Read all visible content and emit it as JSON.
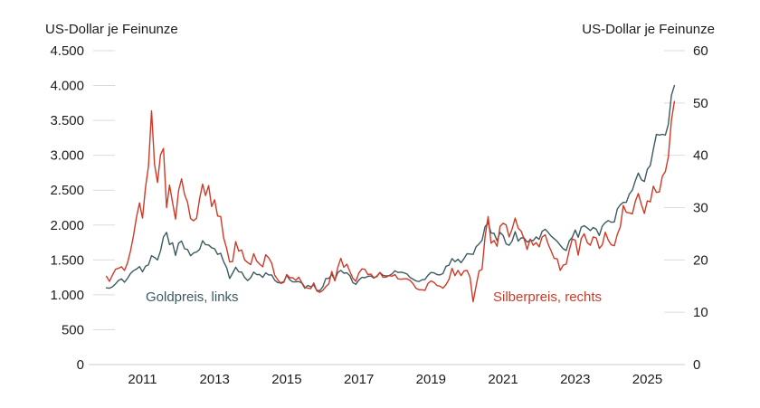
{
  "page": {
    "background": "#ffffff"
  },
  "chart": {
    "left_axis_title": "US-Dollar je Feinunze",
    "right_axis_title": "US-Dollar je Feinunze",
    "legend": {
      "gold_label": "Goldpreis, links",
      "silver_label": "Silberpreis, rechts"
    },
    "series_colors": {
      "gold": "#3c5a61",
      "silver": "#cf3a27"
    },
    "axis_colors": {
      "tick": "#dbdbdb",
      "baseline": "#cccccc",
      "text": "#1c1c1c"
    }
  },
  "chart_data": {
    "type": "line",
    "title": "",
    "xlabel": "",
    "ylabel_left": "US-Dollar je Feinunze",
    "ylabel_right": "US-Dollar je Feinunze",
    "x_start": 2010.0,
    "x_step": 0.0833333,
    "x_ticks": {
      "values": [
        2011,
        2013,
        2015,
        2017,
        2019,
        2021,
        2023,
        2025
      ],
      "labels": [
        "2011",
        "2013",
        "2015",
        "2017",
        "2019",
        "2021",
        "2023",
        "2025"
      ]
    },
    "left_axis": {
      "ylim": [
        0,
        4500
      ],
      "tick_values": [
        0,
        500,
        1000,
        1500,
        2000,
        2500,
        3000,
        3500,
        4000,
        4500
      ],
      "tick_labels": [
        "0",
        "500",
        "1.000",
        "1.500",
        "2.000",
        "2.500",
        "3.000",
        "3.500",
        "4.000",
        "4.500"
      ]
    },
    "right_axis": {
      "ylim": [
        0,
        60
      ],
      "tick_values": [
        0,
        10,
        20,
        30,
        40,
        50,
        60
      ],
      "tick_labels": [
        "0",
        "10",
        "20",
        "30",
        "40",
        "50",
        "60"
      ]
    },
    "grid": false,
    "legend_position": "inside-plot",
    "series": [
      {
        "name": "Goldpreis, links",
        "axis": "left",
        "color": "#3c5a61",
        "values": [
          1100,
          1095,
          1115,
          1155,
          1205,
          1230,
          1180,
          1235,
          1305,
          1345,
          1370,
          1405,
          1330,
          1410,
          1430,
          1560,
          1535,
          1500,
          1630,
          1830,
          1895,
          1720,
          1745,
          1565,
          1740,
          1770,
          1660,
          1650,
          1560,
          1600,
          1615,
          1650,
          1775,
          1720,
          1715,
          1675,
          1660,
          1580,
          1595,
          1475,
          1390,
          1235,
          1310,
          1395,
          1330,
          1325,
          1250,
          1205,
          1245,
          1325,
          1290,
          1290,
          1250,
          1315,
          1285,
          1285,
          1210,
          1175,
          1175,
          1185,
          1280,
          1215,
          1185,
          1185,
          1190,
          1170,
          1095,
          1135,
          1115,
          1140,
          1065,
          1060,
          1115,
          1235,
          1235,
          1290,
          1215,
          1320,
          1350,
          1310,
          1315,
          1275,
          1175,
          1150,
          1210,
          1250,
          1245,
          1265,
          1270,
          1240,
          1270,
          1320,
          1280,
          1270,
          1275,
          1300,
          1345,
          1320,
          1325,
          1315,
          1300,
          1250,
          1225,
          1200,
          1190,
          1215,
          1220,
          1280,
          1320,
          1315,
          1290,
          1285,
          1305,
          1410,
          1425,
          1520,
          1475,
          1510,
          1460,
          1520,
          1590,
          1585,
          1580,
          1690,
          1730,
          1780,
          1975,
          2035,
          1885,
          1880,
          1775,
          1895,
          1850,
          1730,
          1710,
          1770,
          1905,
          1770,
          1815,
          1815,
          1755,
          1785,
          1775,
          1830,
          1795,
          1910,
          1940,
          1895,
          1840,
          1805,
          1765,
          1710,
          1660,
          1635,
          1770,
          1825,
          1930,
          1825,
          1970,
          1990,
          1960,
          1920,
          1965,
          1940,
          1850,
          1985,
          2035,
          2065,
          2040,
          2045,
          2230,
          2290,
          2325,
          2325,
          2445,
          2500,
          2635,
          2745,
          2650,
          2625,
          2800,
          2855,
          3085,
          3300,
          3290,
          3300,
          3290,
          3445,
          3860,
          4000
        ]
      },
      {
        "name": "Silberpreis, rechts",
        "axis": "right",
        "color": "#cf3a27",
        "values": [
          16.9,
          15.9,
          17.1,
          18.2,
          18.4,
          18.7,
          18.0,
          19.4,
          21.7,
          24.6,
          28.2,
          30.9,
          28.0,
          33.8,
          37.9,
          48.5,
          38.3,
          34.8,
          40.1,
          41.3,
          30.0,
          34.3,
          31.0,
          27.8,
          33.3,
          35.5,
          32.5,
          31.0,
          27.9,
          27.5,
          28.0,
          31.7,
          34.5,
          32.3,
          34.2,
          30.2,
          31.5,
          28.4,
          28.3,
          24.2,
          22.2,
          19.6,
          19.7,
          23.5,
          21.7,
          21.9,
          20.0,
          19.5,
          19.1,
          21.2,
          19.8,
          19.2,
          18.7,
          21.0,
          20.4,
          19.4,
          17.1,
          16.2,
          15.5,
          15.7,
          17.2,
          16.6,
          16.6,
          16.1,
          16.7,
          15.7,
          14.8,
          14.6,
          14.5,
          15.6,
          14.1,
          13.8,
          14.2,
          14.9,
          15.4,
          17.8,
          16.0,
          18.6,
          20.3,
          18.6,
          19.2,
          17.8,
          16.5,
          15.9,
          17.5,
          18.3,
          18.2,
          17.2,
          17.3,
          16.6,
          16.8,
          17.6,
          16.7,
          16.7,
          17.0,
          16.9,
          17.2,
          16.4,
          16.3,
          16.4,
          16.4,
          16.1,
          15.5,
          14.6,
          14.3,
          14.3,
          14.2,
          15.5,
          16.0,
          15.7,
          15.1,
          15.0,
          14.6,
          15.3,
          16.3,
          18.4,
          17.0,
          18.0,
          17.0,
          17.9,
          18.0,
          16.7,
          12.0,
          15.0,
          17.9,
          18.2,
          24.4,
          28.3,
          23.2,
          23.7,
          22.6,
          26.4,
          27.0,
          26.7,
          24.4,
          25.9,
          28.0,
          26.1,
          25.5,
          24.0,
          22.0,
          24.0,
          22.8,
          23.3,
          22.5,
          24.4,
          24.8,
          23.0,
          21.7,
          20.3,
          20.2,
          18.0,
          19.0,
          19.2,
          21.8,
          24.0,
          23.8,
          20.9,
          24.1,
          25.0,
          23.3,
          22.8,
          24.4,
          24.2,
          22.2,
          22.9,
          25.3,
          23.8,
          22.9,
          22.7,
          24.9,
          26.3,
          30.4,
          29.1,
          29.0,
          28.8,
          31.2,
          32.7,
          30.6,
          28.9,
          31.3,
          31.1,
          34.1,
          32.9,
          33.0,
          36.0,
          36.9,
          39.7,
          46.7,
          50.3
        ]
      }
    ]
  }
}
